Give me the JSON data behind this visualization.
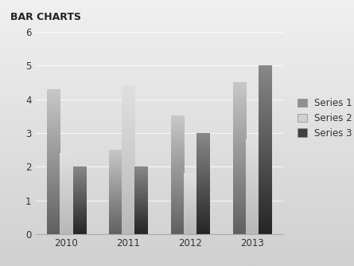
{
  "title": "BAR CHARTS",
  "categories": [
    "2010",
    "2011",
    "2012",
    "2013"
  ],
  "series": {
    "Series 1": [
      4.3,
      2.5,
      3.5,
      4.5
    ],
    "Series 2": [
      2.4,
      4.4,
      1.8,
      2.8
    ],
    "Series 3": [
      2.0,
      2.0,
      3.0,
      5.0
    ]
  },
  "gradient_colors": {
    "Series 1": {
      "top": "#c8c8c8",
      "bot": "#606060"
    },
    "Series 2": {
      "top": "#e0e0e0",
      "bot": "#b8b8b8"
    },
    "Series 3": {
      "top": "#888888",
      "bot": "#252525"
    }
  },
  "legend_colors": {
    "Series 1": "#909090",
    "Series 2": "#d0d0d0",
    "Series 3": "#404040"
  },
  "ylim": [
    0,
    6
  ],
  "yticks": [
    0,
    1,
    2,
    3,
    4,
    5,
    6
  ],
  "bar_width": 0.21,
  "bg_top": "#f0f0f0",
  "bg_bot": "#d0d0d0",
  "title_fontsize": 9,
  "tick_fontsize": 8.5,
  "legend_fontsize": 8.5
}
